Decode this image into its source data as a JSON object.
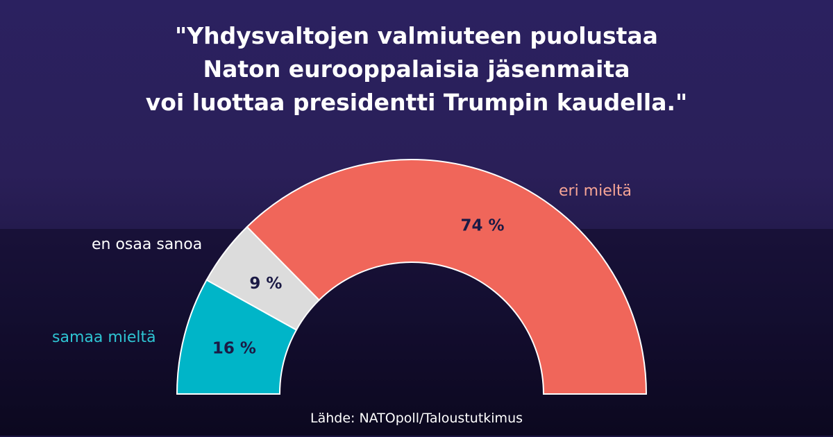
{
  "title_lines": [
    "\"Yhdysvaltojen valmiuteen puolustaa",
    "Naton eurooppalaisia jäsenmaita",
    "voi luottaa presidentti Trumpin kaudella.\""
  ],
  "source": "Lähde: NATOpoll/Taloustutkimus",
  "chart_data": {
    "type": "pie",
    "variant": "half-donut",
    "legend": "none",
    "categories": [
      "samaa mieltä",
      "en osaa sanoa",
      "eri mieltä"
    ],
    "values": [
      16,
      9,
      74
    ],
    "value_labels": [
      "16 %",
      "9 %",
      "74 %"
    ],
    "colors": [
      "#00b5c8",
      "#dcdcdc",
      "#f0665a"
    ],
    "label_colors": [
      "#2ec5d3",
      "#ffffff",
      "#f7a596"
    ]
  }
}
